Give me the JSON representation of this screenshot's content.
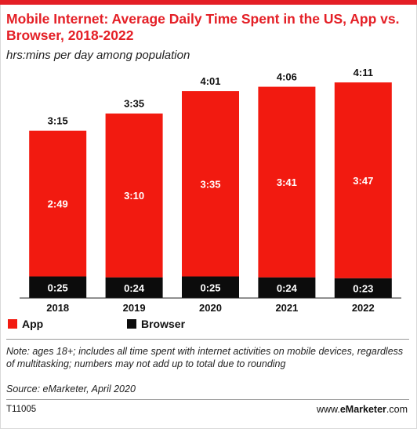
{
  "colors": {
    "accent": "#e41f26",
    "app": "#f21a10",
    "browser": "#0c0c0c",
    "label_light": "#ffffff",
    "label_dark": "#111111"
  },
  "header": {
    "title": "Mobile Internet: Average Daily Time Spent in the US, App vs. Browser, 2018-2022",
    "subtitle": "hrs:mins per day among population"
  },
  "legend": {
    "app": "App",
    "browser": "Browser"
  },
  "footer": {
    "note": "Note: ages 18+; includes all time spent with internet activities on mobile devices, regardless of multitasking; numbers may not add up to total due to rounding",
    "source": "Source: eMarketer, April 2020",
    "code": "T11005",
    "brand_prefix": "www.",
    "brand_bold": "eMarketer",
    "brand_suffix": ".com"
  },
  "chart_data": {
    "type": "bar",
    "stacked": true,
    "categories": [
      "2018",
      "2019",
      "2020",
      "2021",
      "2022"
    ],
    "series": [
      {
        "name": "Browser",
        "values": [
          25,
          24,
          25,
          24,
          23
        ],
        "labels": [
          "0:25",
          "0:24",
          "0:25",
          "0:24",
          "0:23"
        ]
      },
      {
        "name": "App",
        "values": [
          169,
          190,
          215,
          221,
          227
        ],
        "labels": [
          "2:49",
          "3:10",
          "3:35",
          "3:41",
          "3:47"
        ]
      }
    ],
    "totals": {
      "values": [
        195,
        215,
        241,
        246,
        251
      ],
      "labels": [
        "3:15",
        "3:35",
        "4:01",
        "4:06",
        "4:11"
      ]
    },
    "ylim": [
      0,
      260
    ],
    "grid": false,
    "legend_position": "bottom-left"
  }
}
